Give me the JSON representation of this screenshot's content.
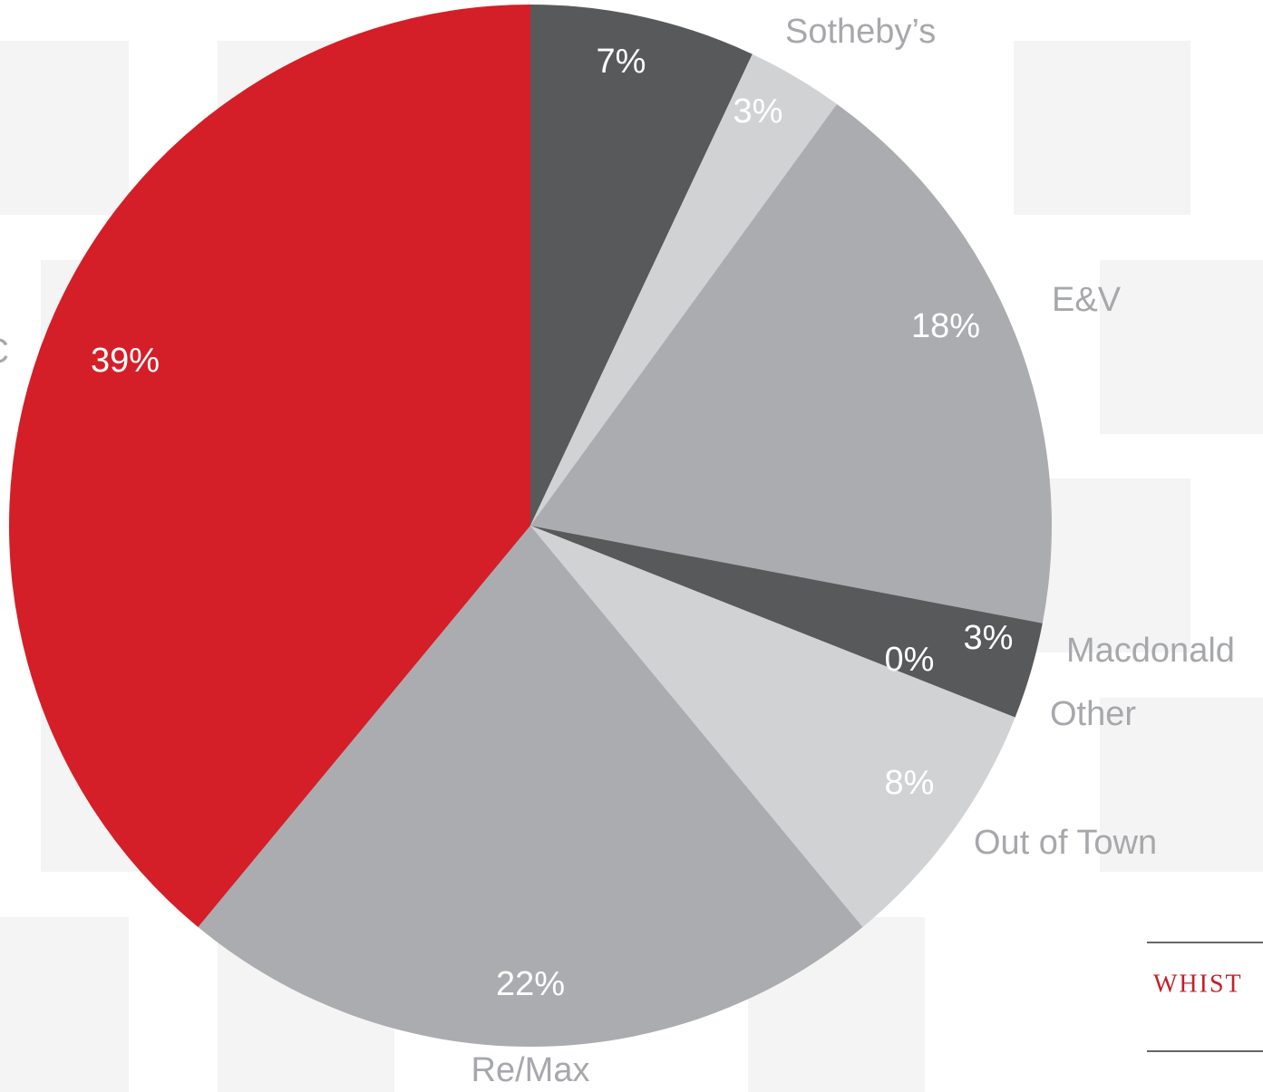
{
  "chart_data": {
    "type": "pie",
    "categories": [
      null,
      "Sotheby’s",
      "E&V",
      "Macdonald",
      "Other",
      "Out of Town",
      "Re/Max",
      "C"
    ],
    "values": [
      7,
      3,
      18,
      3,
      0,
      8,
      22,
      39
    ],
    "value_labels": [
      "7%",
      "3%",
      "18%",
      "3%",
      "0%",
      "8%",
      "22%",
      "39%"
    ],
    "colors": [
      "#58595b",
      "#d1d2d4",
      "#abacb0",
      "#58595b",
      "#abacb0",
      "#d1d2d4",
      "#abacb0",
      "#d41f28"
    ]
  },
  "brand": "WHIST"
}
